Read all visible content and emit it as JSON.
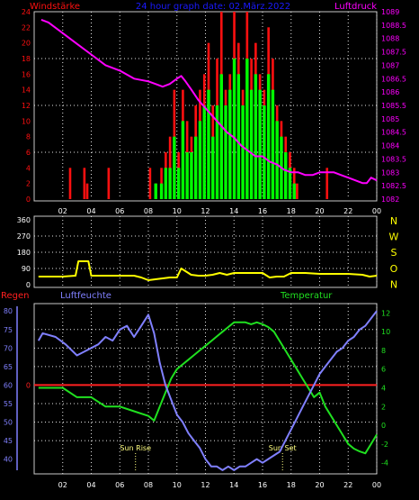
{
  "header": {
    "left": "Windstärke",
    "center": "24 hour graph date: 02.März.2022",
    "right": "Luftdruck"
  },
  "colors": {
    "bg": "#000000",
    "frame": "#c8c8c8",
    "grid": "#e6e6e6",
    "wind": "#ff1010",
    "gust": "#00ff00",
    "pressure": "#ff00ff",
    "direction": "#ffff00",
    "humidity": "#8080ff",
    "temperature": "#20e020",
    "rain": "#ff2020",
    "time_label": "#ffffff",
    "sun_label": "#ffff80",
    "header_center": "#1a1aff",
    "dir_label": "#ffff00"
  },
  "chart_data": [
    {
      "type": "bar",
      "panel": "wind_pressure",
      "x_ticks": [
        "02",
        "04",
        "06",
        "08",
        "10",
        "12",
        "14",
        "16",
        "18",
        "20",
        "22",
        "00"
      ],
      "left_axis": {
        "label": "Windstärke",
        "ticks": [
          "0",
          "2",
          "4",
          "6",
          "8",
          "10",
          "12",
          "14",
          "16",
          "18",
          "20",
          "22",
          "24"
        ],
        "ylim": [
          0,
          24
        ]
      },
      "right_axis": {
        "label": "Luftdruck",
        "ticks": [
          "1082",
          "1082.5",
          "1083",
          "1083.5",
          "1084",
          "1084.5",
          "1085",
          "1085.5",
          "1086",
          "1086.5",
          "1087",
          "1087.5",
          "1088",
          "1088.5",
          "1089"
        ],
        "ylim": [
          1082,
          1089
        ]
      },
      "grid": true,
      "series": [
        {
          "name": "Windstärke",
          "x": [
            2.5,
            3.5,
            3.7,
            5.2,
            8.1,
            8.5,
            8.9,
            9.2,
            9.5,
            9.8,
            10.1,
            10.4,
            10.7,
            11.0,
            11.3,
            11.6,
            11.9,
            12.2,
            12.5,
            12.8,
            13.1,
            13.4,
            13.7,
            14.0,
            14.3,
            14.6,
            14.9,
            15.2,
            15.5,
            15.8,
            16.1,
            16.4,
            16.7,
            17.0,
            17.3,
            17.6,
            17.9,
            18.2,
            18.4,
            20.5
          ],
          "values": [
            4,
            4,
            2,
            4,
            4,
            2,
            4,
            6,
            8,
            14,
            6,
            14,
            10,
            8,
            12,
            14,
            16,
            20,
            12,
            18,
            24,
            14,
            16,
            24,
            20,
            14,
            24,
            18,
            20,
            16,
            14,
            22,
            18,
            12,
            10,
            8,
            6,
            4,
            2,
            4
          ]
        },
        {
          "name": "Böen",
          "x": [
            8.5,
            8.9,
            9.2,
            9.5,
            9.8,
            10.1,
            10.4,
            10.7,
            11.0,
            11.3,
            11.6,
            11.9,
            12.2,
            12.5,
            12.8,
            13.1,
            13.4,
            13.7,
            14.0,
            14.3,
            14.6,
            14.9,
            15.2,
            15.5,
            15.8,
            16.1,
            16.4,
            16.7,
            17.0,
            17.3,
            17.6,
            17.9,
            18.2
          ],
          "values": [
            2,
            2,
            4,
            4,
            8,
            4,
            10,
            6,
            6,
            8,
            10,
            12,
            14,
            8,
            12,
            16,
            12,
            14,
            18,
            16,
            12,
            18,
            14,
            16,
            14,
            12,
            16,
            14,
            10,
            8,
            6,
            4,
            2
          ]
        },
        {
          "name": "Luftdruck",
          "type": "line",
          "axis": "right",
          "x": [
            0.5,
            1,
            2,
            3,
            4,
            5,
            6,
            7,
            8,
            8.5,
            9,
            9.5,
            10,
            10.3,
            10.6,
            11,
            11.5,
            12,
            12.5,
            13,
            13.5,
            14,
            14.5,
            15,
            15.5,
            16,
            16.5,
            17,
            17.5,
            18,
            18.5,
            19,
            19.5,
            20,
            20.5,
            21,
            21.5,
            22,
            22.5,
            23,
            23.3,
            23.6,
            24
          ],
          "values": [
            1088.7,
            1088.6,
            1088.2,
            1087.8,
            1087.4,
            1087.0,
            1086.8,
            1086.5,
            1086.4,
            1086.3,
            1086.2,
            1086.3,
            1086.5,
            1086.6,
            1086.4,
            1086.1,
            1085.7,
            1085.4,
            1085.1,
            1084.8,
            1084.5,
            1084.3,
            1084.0,
            1083.8,
            1083.6,
            1083.6,
            1083.4,
            1083.3,
            1083.1,
            1083.0,
            1083.0,
            1082.9,
            1082.9,
            1083.0,
            1083.0,
            1083.0,
            1082.9,
            1082.8,
            1082.7,
            1082.6,
            1082.6,
            1082.8,
            1082.7
          ]
        }
      ]
    },
    {
      "type": "line",
      "panel": "wind_direction",
      "left_ticks": [
        "0",
        "90",
        "180",
        "270",
        "360"
      ],
      "right_labels": [
        "N",
        "W",
        "S",
        "O",
        "N"
      ],
      "ylim": [
        0,
        360
      ],
      "grid": true,
      "series": [
        {
          "name": "Windrichtung",
          "x": [
            0.3,
            1,
            2,
            2.9,
            3.1,
            3.8,
            4.0,
            5,
            6,
            7,
            7.5,
            8,
            8.5,
            9,
            9.5,
            10,
            10.3,
            10.7,
            11,
            11.5,
            12,
            12.5,
            13,
            13.5,
            14,
            15,
            16,
            16.5,
            17,
            17.5,
            18,
            19,
            20,
            21,
            22,
            23,
            23.5,
            24
          ],
          "values": [
            45,
            45,
            45,
            50,
            130,
            130,
            50,
            50,
            50,
            50,
            40,
            25,
            30,
            35,
            40,
            40,
            90,
            70,
            55,
            50,
            50,
            55,
            65,
            55,
            65,
            65,
            65,
            40,
            45,
            45,
            65,
            65,
            60,
            60,
            60,
            55,
            45,
            50
          ]
        }
      ]
    },
    {
      "type": "line",
      "panel": "humidity_temperature",
      "labels": {
        "rain": "Regen",
        "humidity": "Luftfeuchte",
        "temperature": "Temperatur",
        "sunrise": "Sun Rise",
        "sunset": "Sun Set"
      },
      "x_ticks": [
        "02",
        "04",
        "06",
        "08",
        "10",
        "12",
        "14",
        "16",
        "18",
        "20",
        "22",
        "00"
      ],
      "rain_tick": "0",
      "rain_values": [
        0
      ],
      "left_axis": {
        "ticks": [
          "40",
          "45",
          "50",
          "55",
          "60",
          "65",
          "70",
          "75",
          "80"
        ],
        "ylim": [
          36.5,
          82
        ]
      },
      "right_axis": {
        "ticks": [
          "-4",
          "-2",
          "0",
          "2",
          "4",
          "6",
          "8",
          "10",
          "12"
        ],
        "ylim": [
          -5,
          13
        ]
      },
      "sunrise_x": 7.1,
      "sunset_x": 17.4,
      "grid": true,
      "series": [
        {
          "name": "Luftfeuchte",
          "x": [
            0.3,
            0.6,
            1.5,
            2.2,
            3.0,
            3.5,
            4.0,
            4.5,
            5.0,
            5.5,
            6.0,
            6.5,
            7.0,
            7.5,
            8.0,
            8.4,
            8.8,
            9.2,
            9.6,
            10.0,
            10.4,
            10.8,
            11.2,
            11.6,
            12.0,
            12.4,
            12.8,
            13.2,
            13.6,
            14.0,
            14.4,
            14.8,
            15.2,
            15.6,
            16.0,
            16.4,
            16.8,
            17.2,
            17.6,
            18.0,
            18.4,
            18.8,
            19.2,
            19.6,
            20.0,
            20.4,
            20.8,
            21.2,
            21.6,
            22.0,
            22.4,
            22.8,
            23.2,
            23.6,
            24.0
          ],
          "values": [
            72,
            74,
            73,
            71,
            68,
            69,
            70,
            71,
            73,
            72,
            75,
            76,
            73,
            76,
            79,
            74,
            66,
            60,
            56,
            52,
            50,
            47,
            45,
            43,
            40,
            38,
            38,
            37,
            38,
            37,
            38,
            38,
            39,
            40,
            39,
            40,
            41,
            42,
            45,
            48,
            51,
            54,
            57,
            60,
            63,
            65,
            67,
            69,
            70,
            72,
            73,
            75,
            76,
            78,
            80
          ]
        },
        {
          "name": "Temperatur",
          "x": [
            0.3,
            1.0,
            2.0,
            3.0,
            4.0,
            5.0,
            6.0,
            7.0,
            8.0,
            8.4,
            8.8,
            9.2,
            9.6,
            10.0,
            10.4,
            10.8,
            11.2,
            11.6,
            12.0,
            12.4,
            12.8,
            13.2,
            13.6,
            14.0,
            14.4,
            14.8,
            15.2,
            15.6,
            16.0,
            16.4,
            16.8,
            17.2,
            17.6,
            18.0,
            18.4,
            18.8,
            19.2,
            19.6,
            20.0,
            20.4,
            20.8,
            21.2,
            21.6,
            22.0,
            22.4,
            22.8,
            23.2,
            23.6,
            24.0
          ],
          "values": [
            4,
            4,
            4,
            3,
            3,
            2,
            2,
            1.5,
            1,
            0.5,
            2,
            3.5,
            5,
            6,
            6.5,
            7,
            7.5,
            8,
            8.5,
            9,
            9.5,
            10,
            10.5,
            11,
            11,
            11,
            10.8,
            11,
            10.8,
            10.5,
            10,
            9,
            8,
            7,
            6,
            5,
            4,
            3,
            3.5,
            2,
            1,
            0,
            -1,
            -2,
            -2.5,
            -2.8,
            -3,
            -2,
            -1
          ]
        }
      ]
    }
  ]
}
